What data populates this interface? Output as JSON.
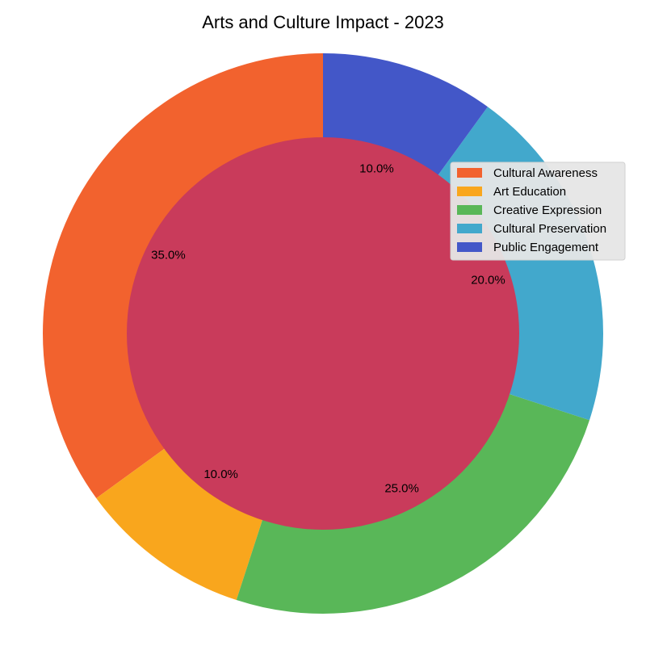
{
  "chart_data": {
    "type": "pie",
    "title": "Arts and Culture Impact - 2023",
    "categories": [
      "Cultural Awareness",
      "Art Education",
      "Creative Expression",
      "Cultural Preservation",
      "Public Engagement"
    ],
    "values": [
      35,
      10,
      25,
      20,
      10
    ],
    "labels": [
      "35.0%",
      "10.0%",
      "25.0%",
      "20.0%",
      "10.0%"
    ],
    "colors": [
      "#f2622e",
      "#f9a61d",
      "#59b758",
      "#42a8cc",
      "#4357c8"
    ],
    "center_color": "#c93b5b",
    "start_angle_deg": 90,
    "direction": "counterclockwise",
    "legend": {
      "placement": "upper-right",
      "background": "#e6e6e6"
    }
  }
}
